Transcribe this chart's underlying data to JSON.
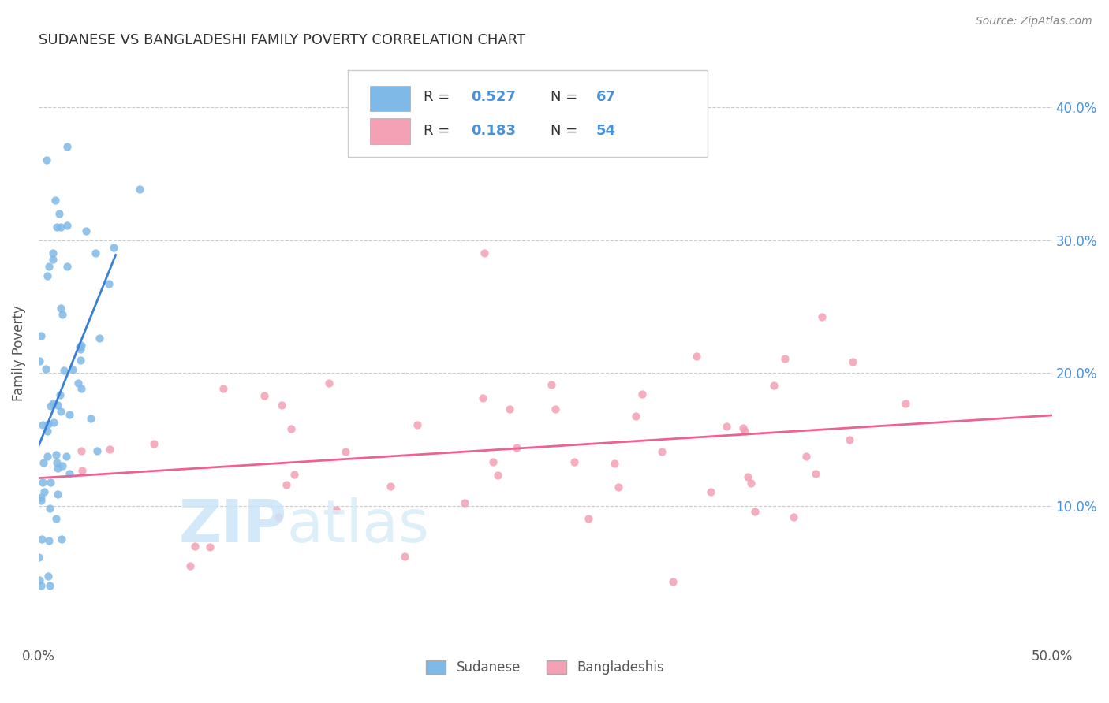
{
  "title": "SUDANESE VS BANGLADESHI FAMILY POVERTY CORRELATION CHART",
  "source": "Source: ZipAtlas.com",
  "ylabel": "Family Poverty",
  "ytick_labels": [
    "10.0%",
    "20.0%",
    "30.0%",
    "40.0%"
  ],
  "ytick_values": [
    0.1,
    0.2,
    0.3,
    0.4
  ],
  "xlim": [
    0.0,
    0.5
  ],
  "ylim": [
    -0.005,
    0.435
  ],
  "legend1_R": "0.527",
  "legend1_N": "67",
  "legend2_R": "0.183",
  "legend2_N": "54",
  "sudanese_color": "#7eb9e8",
  "bangladeshi_color": "#f4a0b5",
  "line_sudanese_color": "#3a7fd5",
  "line_bangladeshi_color": "#f06090",
  "background_color": "#ffffff"
}
